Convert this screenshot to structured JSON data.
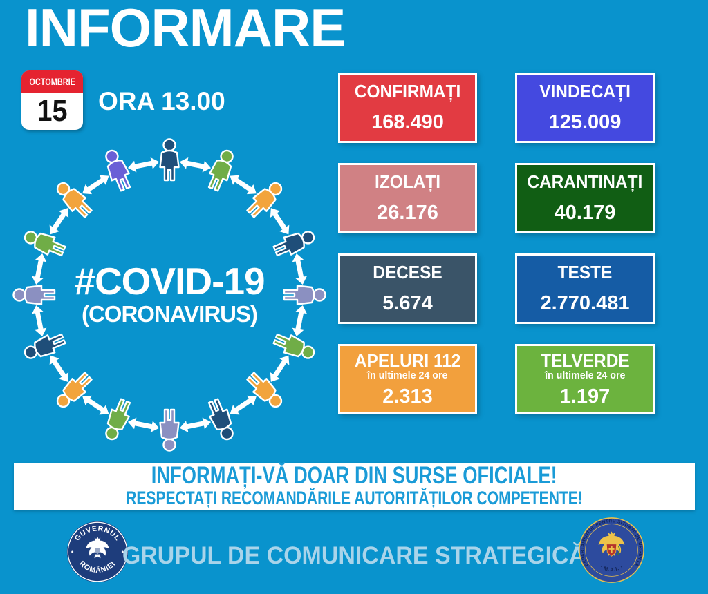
{
  "colors": {
    "background": "#0993cd",
    "banner_text_blue": "#1a9bd7",
    "footer_text_blue": "#a9d4ea",
    "calendar_red": "#e52330",
    "gov_seal_navy": "#1e3d7c",
    "dsu_seal_blue": "#2d4b9e",
    "dsu_gold": "#edc24a"
  },
  "header": {
    "title": "INFORMARE",
    "calendar": {
      "month": "OCTOMBRIE",
      "day": "15"
    },
    "time_label": "ORA 13.00"
  },
  "covid_circle": {
    "line1": "#COVID-19",
    "line2": "(CORONAVIRUS)",
    "figure_colors": [
      "#1f4e79",
      "#70ad47",
      "#f2a43c",
      "#1f4e79",
      "#8b90c1",
      "#70ad47",
      "#f2a43c",
      "#1f4e79",
      "#8b90c1",
      "#70ad47",
      "#f2a43c",
      "#1f4e79",
      "#8b90c1",
      "#70ad47",
      "#f2a43c",
      "#6a5fd6"
    ]
  },
  "stats": [
    {
      "label": "CONFIRMAȚI",
      "value": "168.490",
      "bg": "#e23b42"
    },
    {
      "label": "VINDECAȚI",
      "value": "125.009",
      "bg": "#4449e0"
    },
    {
      "label": "IZOLAȚI",
      "value": "26.176",
      "bg": "#d08184"
    },
    {
      "label": "CARANTINAȚI",
      "value": "40.179",
      "bg": "#115e14"
    },
    {
      "label": "DECESE",
      "value": "5.674",
      "bg": "#3a5468"
    },
    {
      "label": "TESTE",
      "value": "2.770.481",
      "bg": "#155ca5"
    },
    {
      "label": "APELURI 112",
      "sublabel": "în ultimele 24 ore",
      "value": "2.313",
      "bg": "#f2a03d"
    },
    {
      "label": "TELVERDE",
      "sublabel": "în ultimele 24 ore",
      "value": "1.197",
      "bg": "#6cb33e"
    }
  ],
  "banner": {
    "line1": "INFORMAȚI-VĂ DOAR DIN SURSE OFICIALE!",
    "line2": "RESPECTAȚI RECOMANDĂRILE AUTORITĂȚILOR COMPETENTE!"
  },
  "footer": {
    "text": "GRUPUL DE COMUNICARE STRATEGICĂ",
    "gov_seal": {
      "top": "GUVERNUL",
      "bottom": "ROMÂNIEI"
    },
    "dsu_seal": {
      "around": "DEPARTAMENTUL PENTRU SITUAȚII DE URGENȚA",
      "bottom": "· M.A.I. ·"
    }
  }
}
